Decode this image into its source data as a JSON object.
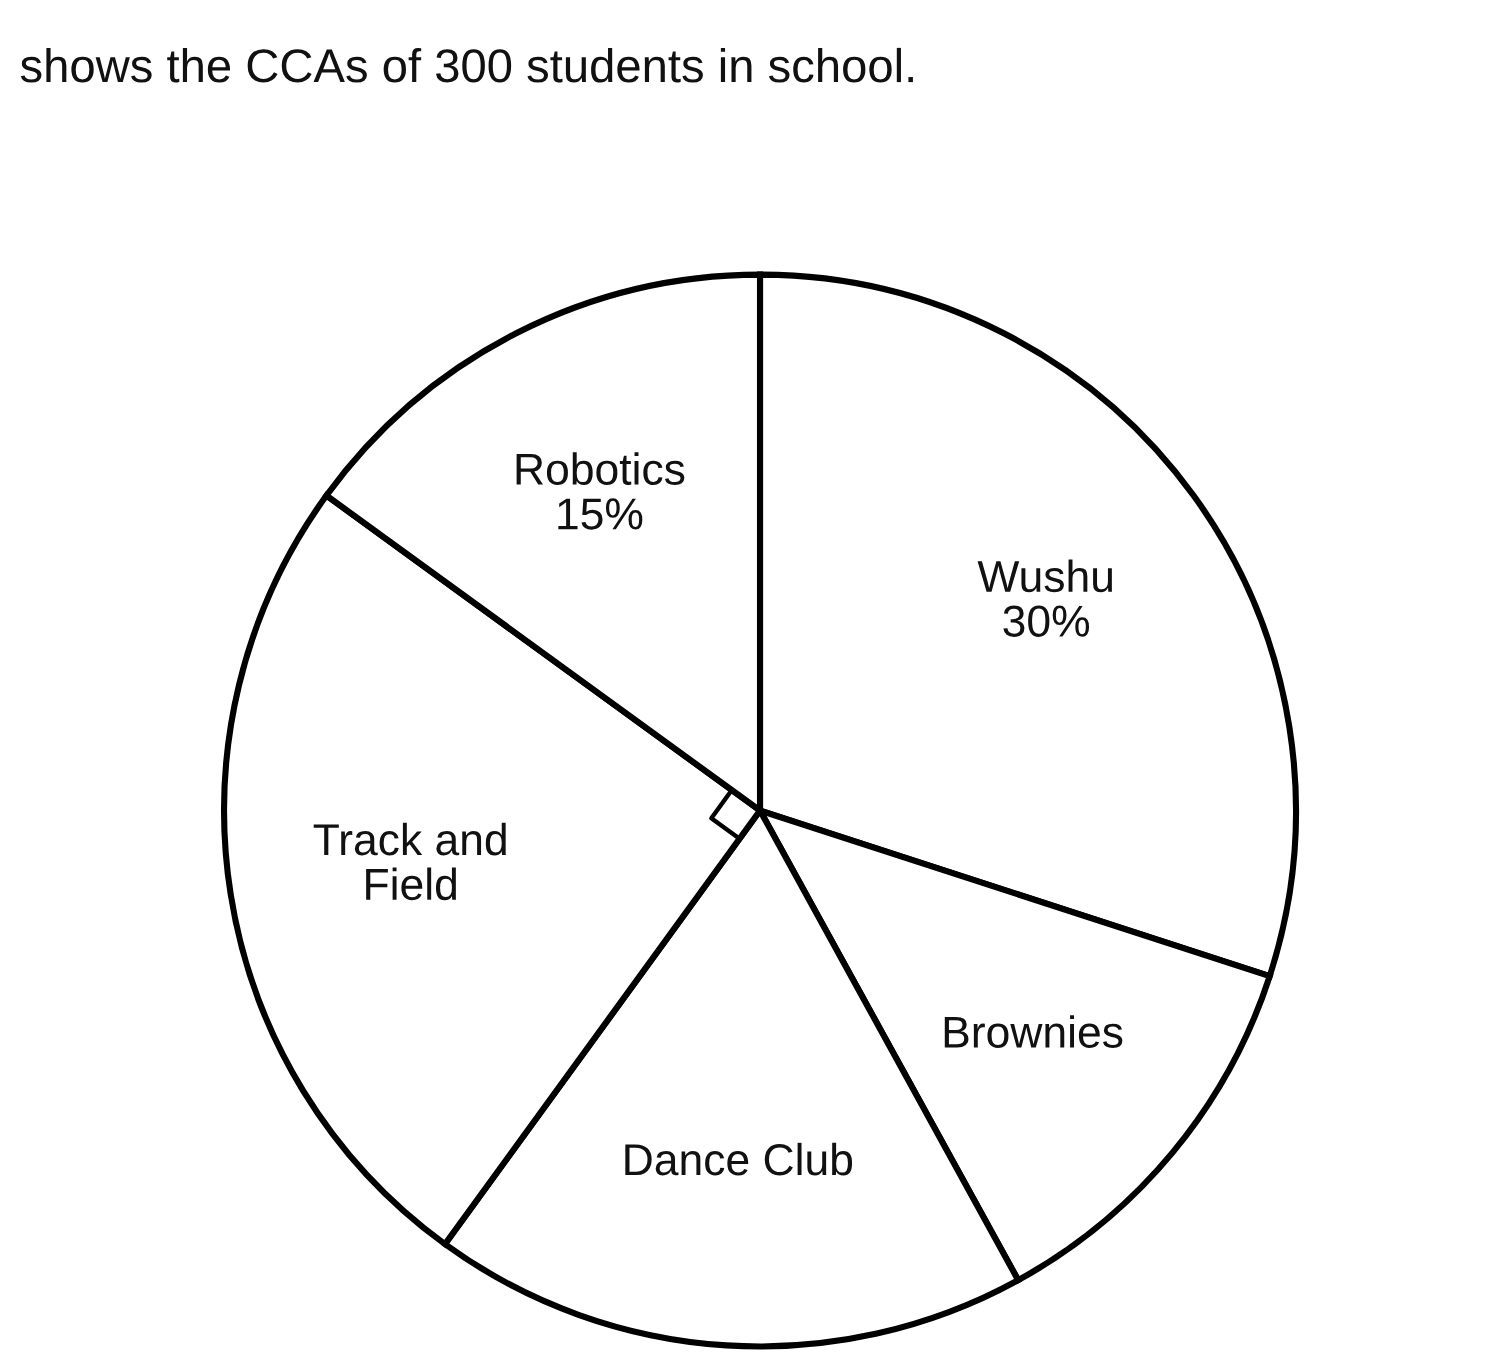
{
  "chart_data": {
    "type": "pie",
    "title": "shows the CCAs of 300 students in school.",
    "categories": [
      "Wushu",
      "Brownies",
      "Dance Club",
      "Track and Field",
      "Robotics"
    ],
    "values": [
      30,
      12,
      18,
      25,
      15
    ],
    "value_labels": [
      "30%",
      null,
      null,
      null,
      "15%"
    ],
    "colors": [
      "#ffffff",
      "#ffffff",
      "#ffffff",
      "#ffffff",
      "#ffffff"
    ],
    "legend": false
  }
}
